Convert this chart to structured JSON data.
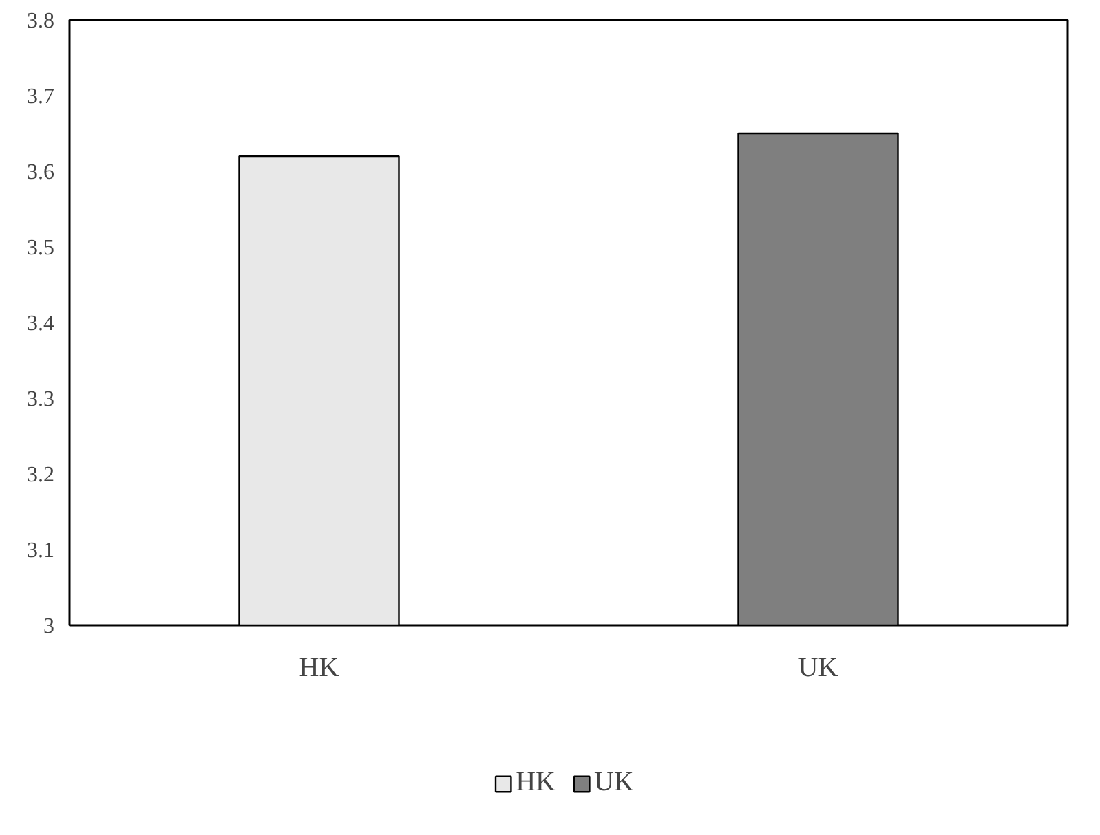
{
  "chart_data": {
    "type": "bar",
    "categories": [
      "HK",
      "UK"
    ],
    "series": [
      {
        "name": "HK",
        "color": "#e8e8e8",
        "values": [
          3.62,
          null
        ]
      },
      {
        "name": "UK",
        "color": "#7f7f7f",
        "values": [
          null,
          3.65
        ]
      }
    ],
    "ylim": [
      3,
      3.8
    ],
    "yticks": [
      3,
      3.1,
      3.2,
      3.3,
      3.4,
      3.5,
      3.6,
      3.7,
      3.8
    ],
    "grid": false,
    "legend": "bottom"
  }
}
